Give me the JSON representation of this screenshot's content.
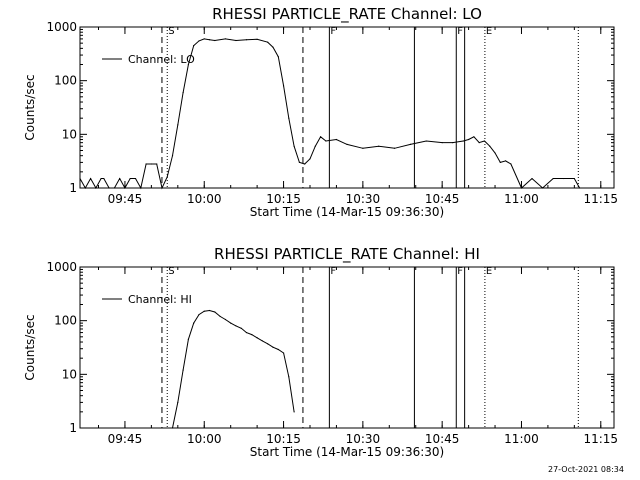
{
  "footer": {
    "timestamp": "27-Oct-2021 08:34"
  },
  "chart_data": [
    {
      "type": "line",
      "title": "RHESSI PARTICLE_RATE Channel: LO",
      "xlabel": "Start Time (14-Mar-15 09:36:30)",
      "ylabel": "Counts/sec",
      "yscale": "log",
      "ylim": [
        1,
        1000
      ],
      "xlim": [
        "09:36:30",
        "11:17:30"
      ],
      "x_ticks": [
        "09:45",
        "10:00",
        "10:15",
        "10:30",
        "10:45",
        "11:00",
        "11:15"
      ],
      "y_ticks": [
        "1",
        "10",
        "100",
        "1000"
      ],
      "legend": {
        "entries": [
          "Channel: LO"
        ],
        "position": "upper-left"
      },
      "markers": [
        {
          "label": "S",
          "time": "09:53:00",
          "style": "dotted"
        },
        {
          "label": "",
          "time": "09:52:00",
          "style": "dashed"
        },
        {
          "label": "",
          "time": "10:18:40",
          "style": "dashed"
        },
        {
          "label": "F",
          "time": "10:23:40",
          "style": "solid"
        },
        {
          "label": "",
          "time": "10:39:45",
          "style": "solid"
        },
        {
          "label": "F",
          "time": "10:47:40",
          "style": "solid"
        },
        {
          "label": "",
          "time": "10:49:15",
          "style": "solid"
        },
        {
          "label": "E",
          "time": "10:53:05",
          "style": "dotted"
        },
        {
          "label": "",
          "time": "11:10:45",
          "style": "dotted"
        }
      ],
      "series": [
        {
          "name": "Channel: LO",
          "x": [
            "09:36:30",
            "09:37:30",
            "09:38:30",
            "09:39:30",
            "09:40:30",
            "09:41:00",
            "09:42:00",
            "09:43:00",
            "09:44:00",
            "09:45:00",
            "09:46:00",
            "09:47:00",
            "09:48:00",
            "09:49:00",
            "09:50:00",
            "09:51:00",
            "09:52:00",
            "09:53:00",
            "09:54:00",
            "09:55:00",
            "09:56:00",
            "09:57:00",
            "09:58:00",
            "09:59:00",
            "10:00:00",
            "10:01:00",
            "10:02:00",
            "10:04:00",
            "10:06:00",
            "10:08:00",
            "10:10:00",
            "10:12:00",
            "10:13:00",
            "10:14:00",
            "10:15:00",
            "10:16:00",
            "10:17:00",
            "10:18:00",
            "10:19:00",
            "10:20:00",
            "10:21:00",
            "10:22:00",
            "10:23:00",
            "10:25:00",
            "10:27:00",
            "10:30:00",
            "10:33:00",
            "10:36:00",
            "10:39:00",
            "10:42:00",
            "10:45:00",
            "10:47:00",
            "10:49:00",
            "10:50:00",
            "10:51:00",
            "10:52:00",
            "10:53:00",
            "10:54:00",
            "10:55:00",
            "10:56:00",
            "10:57:00",
            "10:58:00",
            "11:00:00",
            "11:02:00",
            "11:04:00",
            "11:06:00",
            "11:08:00",
            "11:10:00",
            "11:11:00"
          ],
          "y": [
            1.5,
            1,
            1.5,
            1,
            1.5,
            1.5,
            1,
            1,
            1.5,
            1,
            1.5,
            1.5,
            1,
            2.8,
            2.8,
            2.8,
            1,
            1.6,
            4,
            15,
            60,
            200,
            450,
            550,
            600,
            580,
            560,
            600,
            560,
            580,
            590,
            520,
            420,
            280,
            80,
            20,
            6,
            3,
            2.8,
            3.5,
            6,
            9,
            7.5,
            8,
            6.5,
            5.5,
            6,
            5.5,
            6.5,
            7.5,
            7,
            7,
            7.5,
            8,
            9,
            7,
            7.5,
            6,
            4.5,
            3,
            3.2,
            2.8,
            1,
            1.5,
            1,
            1.5,
            1.5,
            1.5,
            1
          ]
        }
      ]
    },
    {
      "type": "line",
      "title": "RHESSI PARTICLE_RATE Channel: HI",
      "xlabel": "Start Time (14-Mar-15 09:36:30)",
      "ylabel": "Counts/sec",
      "yscale": "log",
      "ylim": [
        1,
        1000
      ],
      "xlim": [
        "09:36:30",
        "11:17:30"
      ],
      "x_ticks": [
        "09:45",
        "10:00",
        "10:15",
        "10:30",
        "10:45",
        "11:00",
        "11:15"
      ],
      "y_ticks": [
        "1",
        "10",
        "100",
        "1000"
      ],
      "legend": {
        "entries": [
          "Channel: HI"
        ],
        "position": "upper-left"
      },
      "markers": [
        {
          "label": "S",
          "time": "09:53:00",
          "style": "dotted"
        },
        {
          "label": "",
          "time": "09:52:00",
          "style": "dashed"
        },
        {
          "label": "",
          "time": "10:18:40",
          "style": "dashed"
        },
        {
          "label": "F",
          "time": "10:23:40",
          "style": "solid"
        },
        {
          "label": "",
          "time": "10:39:45",
          "style": "solid"
        },
        {
          "label": "F",
          "time": "10:47:40",
          "style": "solid"
        },
        {
          "label": "",
          "time": "10:49:15",
          "style": "solid"
        },
        {
          "label": "E",
          "time": "10:53:05",
          "style": "dotted"
        },
        {
          "label": "",
          "time": "11:10:45",
          "style": "dotted"
        }
      ],
      "series": [
        {
          "name": "Channel: HI",
          "x": [
            "09:54:00",
            "09:55:00",
            "09:56:00",
            "09:57:00",
            "09:58:00",
            "09:59:00",
            "10:00:00",
            "10:01:00",
            "10:02:00",
            "10:03:00",
            "10:04:00",
            "10:05:00",
            "10:06:00",
            "10:07:00",
            "10:08:00",
            "10:09:00",
            "10:10:00",
            "10:11:00",
            "10:12:00",
            "10:13:00",
            "10:14:00",
            "10:15:00",
            "10:16:00",
            "10:17:00"
          ],
          "y": [
            1,
            3,
            12,
            45,
            90,
            130,
            150,
            155,
            145,
            120,
            105,
            90,
            80,
            72,
            60,
            55,
            48,
            42,
            37,
            32,
            29,
            25,
            9,
            2
          ]
        }
      ]
    }
  ]
}
